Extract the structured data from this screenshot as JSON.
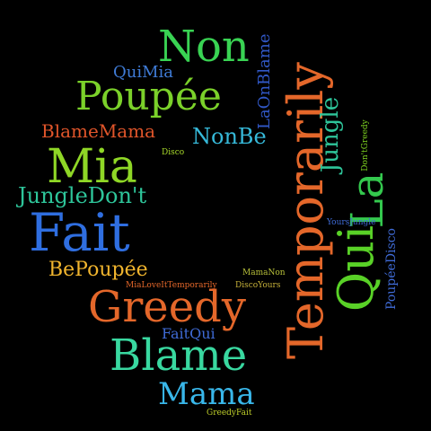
{
  "cloud": {
    "words": [
      {
        "text": "Non",
        "color": "#39d353"
      },
      {
        "text": "QuiMia",
        "color": "#3f7bd6"
      },
      {
        "text": "Poupée",
        "color": "#7bd12a"
      },
      {
        "text": "LaOnBlame",
        "color": "#3158c7"
      },
      {
        "text": "Temporarily",
        "color": "#e4672a"
      },
      {
        "text": "BlameMama",
        "color": "#e0552a"
      },
      {
        "text": "NonBe",
        "color": "#36b9d9"
      },
      {
        "text": "Jungle",
        "color": "#2ec59a"
      },
      {
        "text": "Don'tGreedy",
        "color": "#7ed321"
      },
      {
        "text": "Disco",
        "color": "#a7d92a"
      },
      {
        "text": "Mia",
        "color": "#8fd726"
      },
      {
        "text": "La",
        "color": "#34c94e"
      },
      {
        "text": "JungleDon't",
        "color": "#2ec59a"
      },
      {
        "text": "Fait",
        "color": "#2f6ee0"
      },
      {
        "text": "Qui",
        "color": "#59d127"
      },
      {
        "text": "YoursJungle",
        "color": "#3f6bd6"
      },
      {
        "text": "PoupéeDisco",
        "color": "#3f6bd6"
      },
      {
        "text": "BePoupée",
        "color": "#f1b52e"
      },
      {
        "text": "MamaNon",
        "color": "#b8c13a"
      },
      {
        "text": "MiaLoveItTemporarily",
        "color": "#e4672a"
      },
      {
        "text": "DiscoYours",
        "color": "#c6b13a"
      },
      {
        "text": "Greedy",
        "color": "#e4672a"
      },
      {
        "text": "FaitQui",
        "color": "#3f6bd6"
      },
      {
        "text": "Blame",
        "color": "#39d8a0"
      },
      {
        "text": "Mama",
        "color": "#39b7ea"
      },
      {
        "text": "GreedyFait",
        "color": "#bfcf2a"
      }
    ]
  }
}
